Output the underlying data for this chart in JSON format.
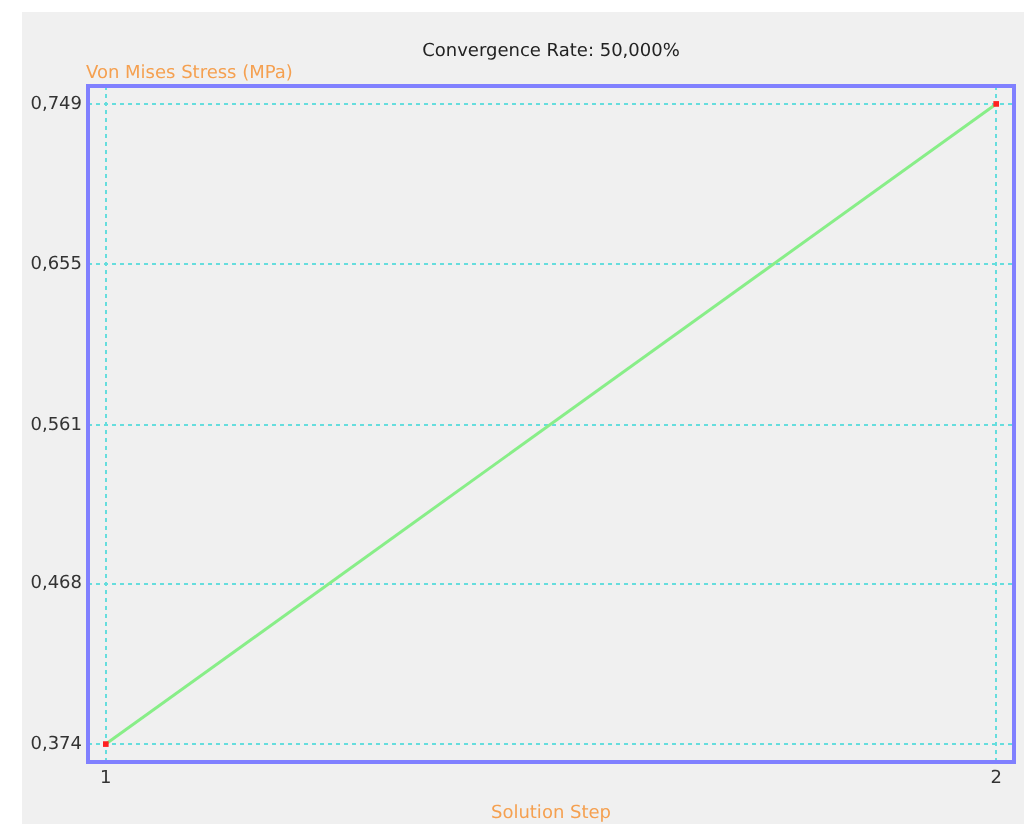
{
  "chart_data": {
    "type": "line",
    "title": "Convergence Rate: 50,000%",
    "xlabel": "Solution Step",
    "ylabel": "Von Mises Stress (MPa)",
    "x": [
      1,
      2
    ],
    "series": [
      {
        "color": "#88ee88",
        "values": [
          0.374,
          0.749
        ]
      }
    ],
    "xlim": [
      0.98,
      2.02
    ],
    "xticks": [
      1,
      2
    ],
    "ylim": [
      0.3635,
      0.7595
    ],
    "yticks": [
      {
        "value": 0.374,
        "label": "0,374"
      },
      {
        "value": 0.468,
        "label": "0,468"
      },
      {
        "value": 0.561,
        "label": "0,561"
      },
      {
        "value": 0.655,
        "label": "0,655"
      },
      {
        "value": 0.749,
        "label": "0,749"
      }
    ],
    "grid": true,
    "marker": "square",
    "line_style": "solid"
  }
}
